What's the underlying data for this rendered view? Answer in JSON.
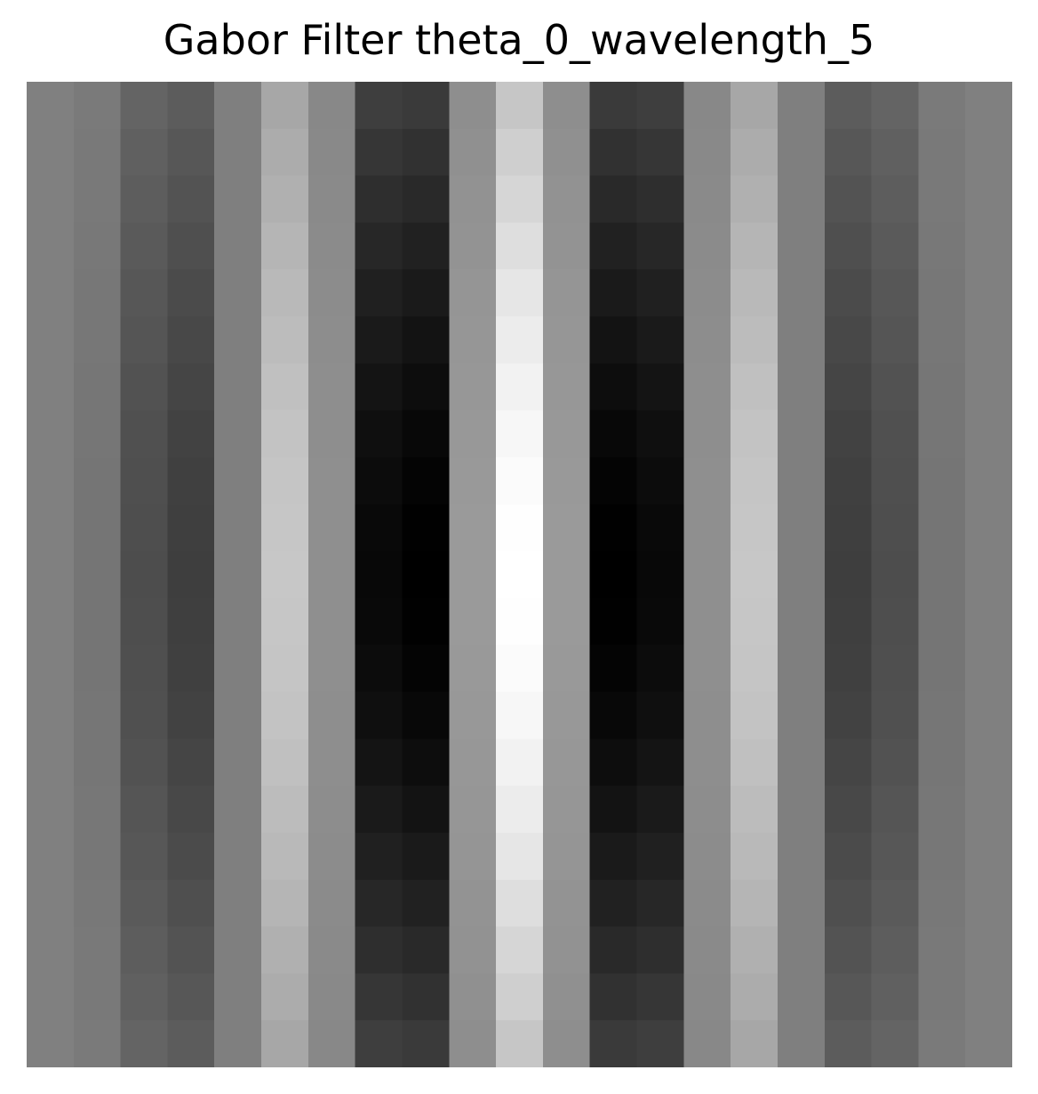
{
  "chart_data": {
    "type": "heatmap",
    "title": "Gabor Filter theta_0_wavelength_5",
    "colormap": "gray",
    "grid": false,
    "axes_visible": false,
    "rows": 21,
    "cols": 21,
    "column_profile": [
      128,
      115,
      88,
      80,
      125,
      163,
      130,
      48,
      40,
      137,
      198,
      137,
      40,
      48,
      130,
      163,
      125,
      80,
      88,
      115,
      128
    ],
    "column_profile_center": [
      128,
      117,
      77,
      62,
      127,
      199,
      143,
      8,
      0,
      154,
      255,
      154,
      0,
      8,
      143,
      199,
      127,
      62,
      77,
      117,
      128
    ],
    "row_envelope": [
      0.55,
      0.62,
      0.68,
      0.74,
      0.8,
      0.85,
      0.9,
      0.94,
      0.97,
      0.99,
      1.0,
      0.99,
      0.97,
      0.94,
      0.9,
      0.85,
      0.8,
      0.74,
      0.68,
      0.62,
      0.55
    ]
  }
}
